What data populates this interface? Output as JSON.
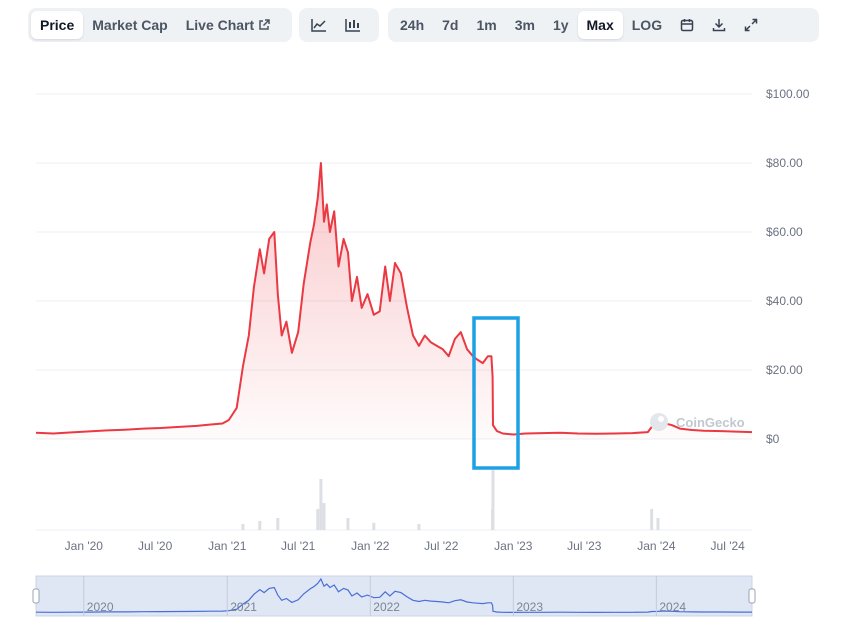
{
  "toolbar": {
    "metric_tabs": [
      {
        "label": "Price",
        "active": true
      },
      {
        "label": "Market Cap",
        "active": false
      },
      {
        "label": "Live Chart",
        "active": false,
        "icon": "external-link-icon"
      }
    ],
    "chart_type_buttons": [
      {
        "icon": "line-chart-icon"
      },
      {
        "icon": "candlestick-chart-icon"
      }
    ],
    "ranges": [
      {
        "label": "24h",
        "active": false
      },
      {
        "label": "7d",
        "active": false
      },
      {
        "label": "1m",
        "active": false
      },
      {
        "label": "3m",
        "active": false
      },
      {
        "label": "1y",
        "active": false
      },
      {
        "label": "Max",
        "active": true
      },
      {
        "label": "LOG",
        "active": false
      }
    ],
    "tool_icons": [
      "calendar-icon",
      "download-icon",
      "expand-icon"
    ]
  },
  "watermark": "CoinGecko",
  "colors": {
    "line": "#ea3943",
    "highlight_box": "#1da1e6",
    "navigator_line": "#4a6fd6",
    "navigator_fill": "#dfe6f4",
    "grid": "#eceff3"
  },
  "chart_data": {
    "type": "area",
    "ylim": [
      0,
      100
    ],
    "y_ticks": [
      "$100.00",
      "$80.00",
      "$60.00",
      "$40.00",
      "$20.00",
      "$0"
    ],
    "y_tick_values": [
      100,
      80,
      60,
      40,
      20,
      0
    ],
    "x_ticks": [
      "Jan '20",
      "Jul '20",
      "Jan '21",
      "Jul '21",
      "Jan '22",
      "Jul '22",
      "Jan '23",
      "Jul '23",
      "Jan '24",
      "Jul '24"
    ],
    "x_tick_values": [
      "2020-01-01",
      "2020-07-01",
      "2021-01-01",
      "2021-07-01",
      "2022-01-01",
      "2022-07-01",
      "2023-01-01",
      "2023-07-01",
      "2024-01-01",
      "2024-07-01"
    ],
    "x_range": [
      "2019-09-01",
      "2024-09-01"
    ],
    "grid": true,
    "series": [
      {
        "x": [
          "2019-09-01",
          "2019-10-15",
          "2019-12-01",
          "2020-01-15",
          "2020-03-01",
          "2020-04-15",
          "2020-06-01",
          "2020-07-15",
          "2020-09-01",
          "2020-10-15",
          "2020-11-20",
          "2020-12-20",
          "2021-01-05",
          "2021-01-25",
          "2021-02-10",
          "2021-02-25",
          "2021-03-10",
          "2021-03-25",
          "2021-04-05",
          "2021-04-18",
          "2021-05-01",
          "2021-05-10",
          "2021-05-20",
          "2021-06-01",
          "2021-06-15",
          "2021-07-01",
          "2021-07-15",
          "2021-08-01",
          "2021-08-10",
          "2021-08-20",
          "2021-08-28",
          "2021-09-05",
          "2021-09-12",
          "2021-09-20",
          "2021-10-01",
          "2021-10-12",
          "2021-10-25",
          "2021-11-05",
          "2021-11-15",
          "2021-11-28",
          "2021-12-10",
          "2021-12-25",
          "2022-01-10",
          "2022-01-25",
          "2022-02-08",
          "2022-02-20",
          "2022-03-05",
          "2022-03-20",
          "2022-04-05",
          "2022-04-20",
          "2022-05-05",
          "2022-05-20",
          "2022-06-05",
          "2022-06-20",
          "2022-07-05",
          "2022-07-20",
          "2022-08-05",
          "2022-08-20",
          "2022-09-05",
          "2022-09-20",
          "2022-10-01",
          "2022-10-15",
          "2022-10-28",
          "2022-11-06",
          "2022-11-09",
          "2022-11-10",
          "2022-11-20",
          "2022-12-05",
          "2023-01-01",
          "2023-02-01",
          "2023-03-15",
          "2023-05-01",
          "2023-06-15",
          "2023-08-01",
          "2023-09-15",
          "2023-11-01",
          "2023-12-10",
          "2023-12-20",
          "2024-01-05",
          "2024-01-20",
          "2024-02-10",
          "2024-03-01",
          "2024-04-01",
          "2024-05-01",
          "2024-06-15",
          "2024-08-01",
          "2024-09-01"
        ],
        "y": [
          1.8,
          1.6,
          1.9,
          2.2,
          2.5,
          2.7,
          3.0,
          3.2,
          3.5,
          3.8,
          4.2,
          4.5,
          5.5,
          9,
          21,
          30,
          44,
          55,
          48,
          58,
          60,
          42,
          30,
          34,
          25,
          31,
          45,
          57,
          62,
          70,
          80,
          63,
          68,
          60,
          66,
          50,
          58,
          54,
          40,
          47,
          38,
          42,
          36,
          37,
          50,
          40,
          51,
          48,
          38,
          30,
          27,
          30,
          28,
          27,
          26,
          24,
          29,
          31,
          26,
          24,
          23,
          22,
          24,
          24,
          18,
          4,
          2.3,
          1.6,
          1.3,
          1.6,
          1.7,
          1.8,
          1.6,
          1.5,
          1.6,
          1.7,
          2.0,
          3.5,
          3.8,
          4.6,
          4.0,
          3.0,
          2.6,
          2.4,
          2.3,
          2.1,
          2.0
        ]
      }
    ],
    "volume": {
      "x": [
        "2021-02-10",
        "2021-03-25",
        "2021-05-10",
        "2021-08-20",
        "2021-08-28",
        "2021-09-05",
        "2021-11-05",
        "2022-01-10",
        "2022-05-05",
        "2022-11-09",
        "2022-11-10",
        "2023-12-20",
        "2024-01-05"
      ],
      "relative": [
        0.1,
        0.15,
        0.2,
        0.35,
        0.85,
        0.45,
        0.2,
        0.12,
        0.1,
        0.35,
        1.0,
        0.35,
        0.2
      ]
    },
    "navigator_labels": [
      "2020",
      "2021",
      "2022",
      "2023",
      "2024"
    ],
    "navigator_label_values": [
      "2020-01-01",
      "2021-01-01",
      "2022-01-01",
      "2023-01-01",
      "2024-01-01"
    ]
  }
}
